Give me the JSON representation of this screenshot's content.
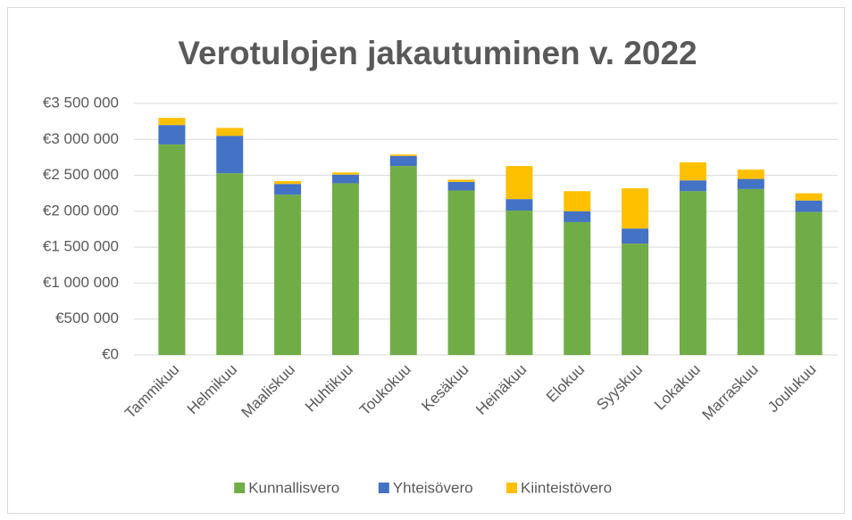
{
  "chart_data": {
    "type": "stacked-bar",
    "title": "Verotulojen jakautuminen v. 2022",
    "categories": [
      "Tammikuu",
      "Helmikuu",
      "Maaliskuu",
      "Huhtikuu",
      "Toukokuu",
      "Kesäkuu",
      "Heinäkuu",
      "Elokuu",
      "Syyskuu",
      "Lokakuu",
      "Marraskuu",
      "Joulukuu"
    ],
    "series": [
      {
        "name": "Kunnallisvero",
        "color": "#70ad47",
        "values": [
          2930000,
          2530000,
          2230000,
          2390000,
          2630000,
          2290000,
          2010000,
          1850000,
          1550000,
          2280000,
          2310000,
          1990000
        ]
      },
      {
        "name": "Yhteisövero",
        "color": "#4472c4",
        "values": [
          270000,
          520000,
          150000,
          120000,
          140000,
          120000,
          160000,
          150000,
          210000,
          150000,
          140000,
          160000
        ]
      },
      {
        "name": "Kiinteistövero",
        "color": "#ffc000",
        "values": [
          100000,
          110000,
          40000,
          30000,
          20000,
          30000,
          460000,
          280000,
          560000,
          250000,
          130000,
          100000
        ]
      }
    ],
    "ylim": [
      0,
      3500000
    ],
    "yticks": [
      {
        "value": 0,
        "label": "€0"
      },
      {
        "value": 500000,
        "label": "€500 000"
      },
      {
        "value": 1000000,
        "label": "€1 000 000"
      },
      {
        "value": 1500000,
        "label": "€1 500 000"
      },
      {
        "value": 2000000,
        "label": "€2 000 000"
      },
      {
        "value": 2500000,
        "label": "€2 500 000"
      },
      {
        "value": 3000000,
        "label": "€3 000 000"
      },
      {
        "value": 3500000,
        "label": "€3 500 000"
      }
    ],
    "grid": true,
    "legend": "bottom"
  }
}
